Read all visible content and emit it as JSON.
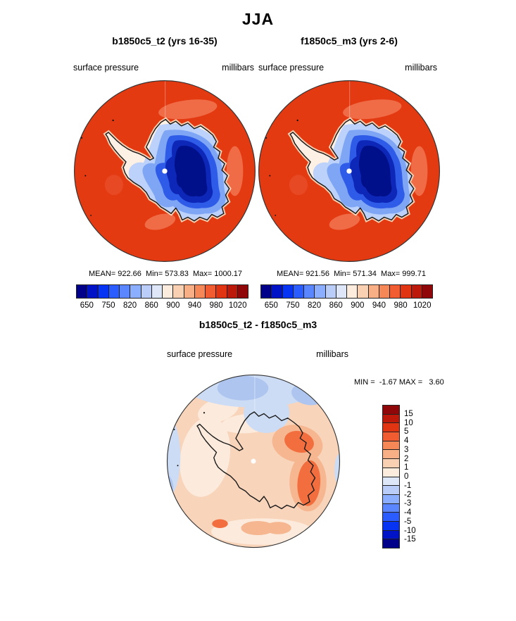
{
  "page_title": "JJA",
  "panels": [
    {
      "title": "b1850c5_t2 (yrs 16-35)",
      "field_label": "surface pressure",
      "units_label": "millibars",
      "stats": "MEAN= 922.66  Min= 573.83  Max= 1000.17"
    },
    {
      "title": "f1850c5_m3 (yrs 2-6)",
      "field_label": "surface pressure",
      "units_label": "millibars",
      "stats": "MEAN= 921.56  Min= 571.34  Max= 999.71"
    }
  ],
  "pressure_colorbar": {
    "ticks": [
      "650",
      "750",
      "820",
      "860",
      "900",
      "940",
      "980",
      "1020"
    ],
    "colors": [
      "#00008B",
      "#0013C6",
      "#0734F3",
      "#2B5CFF",
      "#5A86FF",
      "#8CAEFF",
      "#BACDF9",
      "#DDE7F8",
      "#FBECDE",
      "#F9D0B2",
      "#F8AF85",
      "#F68757",
      "#F15C31",
      "#E13413",
      "#BC190B",
      "#90070A"
    ]
  },
  "diff": {
    "title": "b1850c5_t2 - f1850c5_m3",
    "field_label": "surface pressure",
    "units_label": "millibars",
    "stats": "MIN =  -1.67 MAX =   3.60",
    "colorbar": {
      "labels": [
        "15",
        "10",
        "5",
        "4",
        "3",
        "2",
        "1",
        "0",
        "-1",
        "-2",
        "-3",
        "-4",
        "-5",
        "-10",
        "-15"
      ],
      "colors": [
        "#90070A",
        "#BC190B",
        "#E13413",
        "#F15C31",
        "#F68757",
        "#F8AF85",
        "#F9D0B2",
        "#FBECDE",
        "#DDE7F8",
        "#BACDF9",
        "#8CAEFF",
        "#5A86FF",
        "#2B5CFF",
        "#0734F3",
        "#0013C6",
        "#00008B"
      ]
    }
  },
  "map_colors": {
    "ocean": "#E33A12",
    "ocean_light_patch": "#EF6C47",
    "coast_halo": "#F9D0B2",
    "continent_fringe": "#FDF0E4",
    "ice_light": "#BCD2FA",
    "ice_medium": "#7FA6F4",
    "ice_bright": "#2E5BE8",
    "ice_navy": "#0D28B8",
    "ice_core": "#00108B",
    "diff_base": "#F8D4BA",
    "diff_cream": "#FCEBDC",
    "diff_peach": "#F5B690",
    "diff_orange": "#F26E3E",
    "diff_blue_light": "#CCDCF5",
    "diff_blue_deep": "#AEC6EF",
    "coastline": "#1A1A1A",
    "pole_dot": "#FFFFFF"
  },
  "chart_data": [
    {
      "type": "heatmap",
      "subtype": "filled-contour polar stereographic map (Southern Hemisphere / Antarctica)",
      "title": "b1850c5_t2 (yrs 16-35)",
      "variable": "surface pressure",
      "units": "millibars",
      "season": "JJA",
      "stats": {
        "mean": 922.66,
        "min": 573.83,
        "max": 1000.17
      },
      "colorbar_labeled_levels": [
        650,
        750,
        820,
        860,
        900,
        940,
        980,
        1020
      ],
      "n_color_segments": 16,
      "palette": "blue (low pressure, Antarctic interior) to red (high pressure, surrounding ocean)",
      "legend_position": "horizontal colorbar below map"
    },
    {
      "type": "heatmap",
      "subtype": "filled-contour polar stereographic map (Southern Hemisphere / Antarctica)",
      "title": "f1850c5_m3 (yrs 2-6)",
      "variable": "surface pressure",
      "units": "millibars",
      "season": "JJA",
      "stats": {
        "mean": 921.56,
        "min": 571.34,
        "max": 999.71
      },
      "colorbar_labeled_levels": [
        650,
        750,
        820,
        860,
        900,
        940,
        980,
        1020
      ],
      "n_color_segments": 16,
      "palette": "blue (low pressure, Antarctic interior) to red (high pressure, surrounding ocean)",
      "legend_position": "horizontal colorbar below map"
    },
    {
      "type": "heatmap",
      "subtype": "difference map, polar stereographic (Southern Hemisphere / Antarctica)",
      "title": "b1850c5_t2 - f1850c5_m3",
      "variable": "surface pressure",
      "units": "millibars",
      "stats": {
        "min": -1.67,
        "max": 3.6
      },
      "colorbar_levels": [
        15,
        10,
        5,
        4,
        3,
        2,
        1,
        0,
        -1,
        -2,
        -3,
        -4,
        -5,
        -10,
        -15
      ],
      "n_color_segments": 16,
      "palette": "dark red (positive) at top through white to dark blue (negative) at bottom",
      "legend_position": "vertical colorbar right of map"
    }
  ]
}
